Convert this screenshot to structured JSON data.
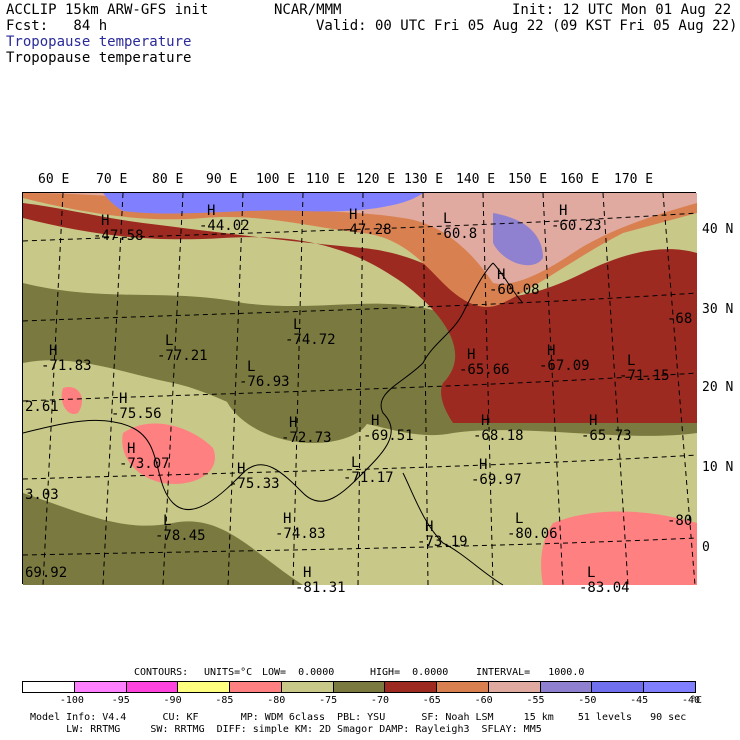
{
  "header": {
    "left_line1": "ACCLIP 15km ARW-GFS init",
    "left_line2": "Fcst:   84 h",
    "center": "NCAR/MMM",
    "right_line1": "Init: 12 UTC Mon 01 Aug 22",
    "right_line2": "Valid: 00 UTC Fri 05 Aug 22 (09 KST Fri 05 Aug 22)",
    "field_title_blue": "Tropopause temperature",
    "field_title_black": "Tropopause temperature"
  },
  "map": {
    "longitude_labels": [
      "60 E",
      "70 E",
      "80 E",
      "90 E",
      "100 E",
      "110 E",
      "120 E",
      "130 E",
      "140 E",
      "150 E",
      "160 E",
      "170 E"
    ],
    "latitude_labels": [
      "40 N",
      "30 N",
      "20 N",
      "10 N",
      "0"
    ],
    "extrema_labels": [
      {
        "type": "H",
        "value": "-47.58"
      },
      {
        "type": "H",
        "value": "-44.02"
      },
      {
        "type": "H",
        "value": "-47.28"
      },
      {
        "type": "L",
        "value": "-60.8"
      },
      {
        "type": "H",
        "value": "-60.23"
      },
      {
        "type": "H",
        "value": "-60.08"
      },
      {
        "type": "L",
        "value": "-74.72"
      },
      {
        "type": "L",
        "value": "-77.21"
      },
      {
        "type": "H",
        "value": "-71.83"
      },
      {
        "type": "L",
        "value": "-76.93"
      },
      {
        "type": "H",
        "value": "-75.56"
      },
      {
        "type": "H",
        "value": "-72.73"
      },
      {
        "type": "H",
        "value": "-69.51"
      },
      {
        "type": "H",
        "value": "-65.66"
      },
      {
        "type": "H",
        "value": "-67.09"
      },
      {
        "type": "L",
        "value": "-71.15"
      },
      {
        "type": "H",
        "value": "-68.18"
      },
      {
        "type": "H",
        "value": "-65.73"
      },
      {
        "type": "H",
        "value": "-73.07"
      },
      {
        "type": "H",
        "value": "-75.33"
      },
      {
        "type": "L",
        "value": "-71.17"
      },
      {
        "type": "H",
        "value": "-69.97"
      },
      {
        "type": "H",
        "value": "-74.83"
      },
      {
        "type": "L",
        "value": "-78.45"
      },
      {
        "type": "H",
        "value": "-73.19"
      },
      {
        "type": "L",
        "value": "-80.06"
      },
      {
        "type": "L",
        "value": "-83.04"
      },
      {
        "type": "H",
        "value": "-81.31"
      },
      {
        "type": "",
        "value": "-68"
      },
      {
        "type": "",
        "value": "2.61"
      },
      {
        "type": "",
        "value": "3.03"
      },
      {
        "type": "",
        "value": "69.92"
      },
      {
        "type": "",
        "value": "-80"
      }
    ]
  },
  "contour_info": {
    "contours": "CONTOURS:",
    "units": "UNITS=°C",
    "low": "LOW=  0.0000",
    "high": "HIGH=  0.0000",
    "interval": "INTERVAL=   1000.0"
  },
  "colorbar": {
    "colors": [
      "#ffffff",
      "#ff80ff",
      "#ff44dd",
      "#ffff80",
      "#ff8080",
      "#c8c888",
      "#7a7a40",
      "#9c2a20",
      "#d98050",
      "#e0aaa0",
      "#9080d0",
      "#7070ee",
      "#8080ff"
    ],
    "tick_labels": [
      "-100",
      "-95",
      "-90",
      "-85",
      "-80",
      "-75",
      "-70",
      "-65",
      "-60",
      "-55",
      "-50",
      "-45",
      "-40"
    ],
    "unit": "°C"
  },
  "footer": {
    "line1": "Model Info: V4.4      CU: KF       MP: WDM 6class  PBL: YSU      SF: Noah LSM     15 km    51 levels   90 sec",
    "line2": "      LW: RRTMG     SW: RRTMG  DIFF: simple KM: 2D Smagor DAMP: Rayleigh3  SFLAY: MM5"
  }
}
